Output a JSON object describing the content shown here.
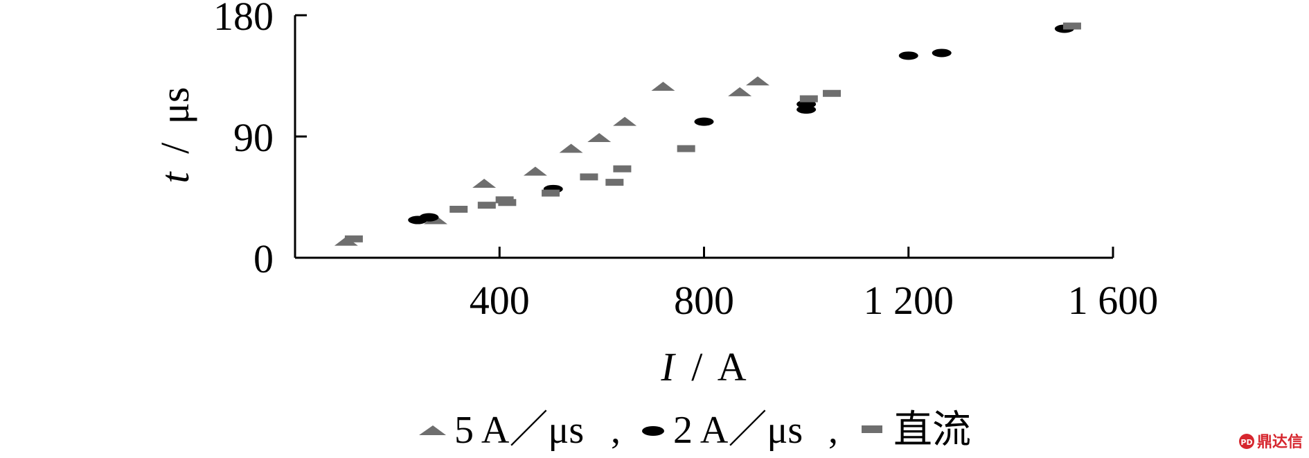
{
  "chart_data": {
    "type": "scatter",
    "title": "",
    "xlabel_var": "I",
    "xlabel_unit": "A",
    "ylabel_var": "t",
    "ylabel_unit": "μs",
    "xlim": [
      0,
      1600
    ],
    "ylim": [
      0,
      180
    ],
    "x_ticks": [
      400,
      800,
      1200,
      1600
    ],
    "x_tick_labels": [
      "400",
      "800",
      "1 200",
      "1 600"
    ],
    "y_ticks": [
      0,
      90,
      180
    ],
    "y_tick_labels": [
      "0",
      "90",
      "180"
    ],
    "grid": false,
    "legend_position": "bottom",
    "series": [
      {
        "name": "5 A／μs",
        "marker": "triangle",
        "color": "#6e6e6e",
        "points": [
          [
            100,
            12
          ],
          [
            275,
            28
          ],
          [
            370,
            55
          ],
          [
            470,
            64
          ],
          [
            540,
            81
          ],
          [
            595,
            89
          ],
          [
            645,
            101
          ],
          [
            720,
            127
          ],
          [
            870,
            123
          ],
          [
            905,
            131
          ]
        ]
      },
      {
        "name": "2 A／μs",
        "marker": "ellipse",
        "color": "#000000",
        "points": [
          [
            240,
            28
          ],
          [
            262,
            30
          ],
          [
            505,
            51
          ],
          [
            800,
            101
          ],
          [
            1000,
            114
          ],
          [
            1000,
            110
          ],
          [
            1200,
            150
          ],
          [
            1265,
            152
          ],
          [
            1505,
            170
          ]
        ]
      },
      {
        "name": "直流",
        "marker": "dash",
        "color": "#6e6e6e",
        "points": [
          [
            115,
            14
          ],
          [
            320,
            36
          ],
          [
            375,
            39
          ],
          [
            410,
            43
          ],
          [
            415,
            41
          ],
          [
            500,
            48
          ],
          [
            575,
            60
          ],
          [
            625,
            56
          ],
          [
            640,
            66
          ],
          [
            765,
            81
          ],
          [
            1005,
            118
          ],
          [
            1050,
            122
          ],
          [
            1520,
            172
          ]
        ]
      }
    ]
  },
  "watermark": {
    "text": "鼎达信",
    "logo_text": "PD"
  }
}
